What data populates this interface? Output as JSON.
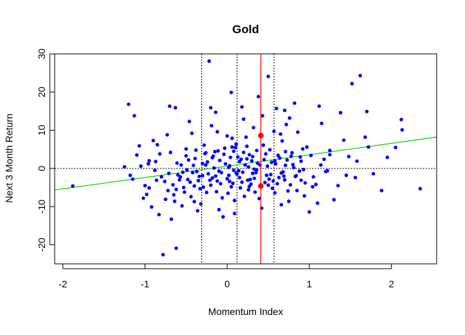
{
  "chart_data": {
    "type": "scatter",
    "title": "Gold",
    "xlabel": "Momentum Index",
    "ylabel": "Next 3 Month Return",
    "xlim": [
      -2.1,
      2.55
    ],
    "ylim": [
      -25,
      30
    ],
    "x_ticks": [
      "-2",
      "-1",
      "0",
      "1",
      "2"
    ],
    "y_ticks": [
      "-20",
      "-10",
      "0",
      "10",
      "20",
      "30"
    ],
    "grid": false,
    "colors": {
      "points": "#0000ff",
      "regression_line": "#00cc00",
      "current_line": "#ff0000",
      "reference_lines": "#000000"
    },
    "regression_line": {
      "intercept": 0.6,
      "slope": 2.98
    },
    "horizontal_reference": 0,
    "vertical_reference_lines": [
      -0.31,
      0.12,
      0.57
    ],
    "current_value_line": 0.41,
    "highlight_points": [
      {
        "x": 0.41,
        "y": 8.6
      },
      {
        "x": 0.41,
        "y": -4.6
      }
    ],
    "points": [
      [
        -1.88,
        -4.6
      ],
      [
        -1.25,
        0.4
      ],
      [
        -1.2,
        16.8
      ],
      [
        -1.13,
        13.8
      ],
      [
        -1.05,
        0.6
      ],
      [
        -1.15,
        -2.8
      ],
      [
        -1.02,
        -7.8
      ],
      [
        -0.95,
        -5.1
      ],
      [
        -0.9,
        7.3
      ],
      [
        -0.85,
        6.2
      ],
      [
        -0.8,
        -2.2
      ],
      [
        -0.78,
        -22.6
      ],
      [
        -0.72,
        -5.8
      ],
      [
        -0.7,
        16.3
      ],
      [
        -0.63,
        15.9
      ],
      [
        -0.62,
        -20.9
      ],
      [
        -0.68,
        -13.3
      ],
      [
        -0.6,
        -1.7
      ],
      [
        -0.56,
        0.9
      ],
      [
        -0.5,
        3.3
      ],
      [
        -0.45,
        -3.6
      ],
      [
        -0.4,
        -8.7
      ],
      [
        -0.35,
        -3.2
      ],
      [
        -0.3,
        1.3
      ],
      [
        -0.25,
        -6.3
      ],
      [
        -0.22,
        28.1
      ],
      [
        -0.2,
        15.9
      ],
      [
        -0.18,
        -2.5
      ],
      [
        -0.15,
        4.4
      ],
      [
        -0.1,
        -10.8
      ],
      [
        -0.05,
        -12.7
      ],
      [
        0.0,
        8.5
      ],
      [
        0.02,
        -1.8
      ],
      [
        0.05,
        19.9
      ],
      [
        0.08,
        -0.5
      ],
      [
        0.1,
        5.5
      ],
      [
        0.15,
        -2.4
      ],
      [
        0.18,
        16.1
      ],
      [
        0.2,
        4.2
      ],
      [
        0.25,
        -3.1
      ],
      [
        0.28,
        -2.9
      ],
      [
        0.32,
        10.7
      ],
      [
        0.35,
        -1.1
      ],
      [
        0.38,
        18.8
      ],
      [
        0.42,
        -10.4
      ],
      [
        0.45,
        2.3
      ],
      [
        0.5,
        24.1
      ],
      [
        0.55,
        -5.2
      ],
      [
        0.6,
        15.7
      ],
      [
        0.65,
        9.0
      ],
      [
        0.7,
        15.2
      ],
      [
        0.75,
        -8.6
      ],
      [
        0.78,
        3.2
      ],
      [
        0.82,
        17.1
      ],
      [
        0.85,
        -5.8
      ],
      [
        0.88,
        -0.7
      ],
      [
        0.92,
        5.1
      ],
      [
        0.95,
        -3.8
      ],
      [
        1.0,
        -11.4
      ],
      [
        1.02,
        3.4
      ],
      [
        1.08,
        -4.2
      ],
      [
        1.1,
        -9.1
      ],
      [
        1.12,
        16.3
      ],
      [
        1.15,
        11.8
      ],
      [
        1.2,
        -0.8
      ],
      [
        1.25,
        3.6
      ],
      [
        1.3,
        -8.2
      ],
      [
        1.38,
        14.6
      ],
      [
        1.45,
        -1.8
      ],
      [
        1.52,
        22.2
      ],
      [
        1.56,
        -2.4
      ],
      [
        1.62,
        24.3
      ],
      [
        1.68,
        8.2
      ],
      [
        1.7,
        14.9
      ],
      [
        1.78,
        -1.4
      ],
      [
        1.88,
        -5.8
      ],
      [
        2.05,
        5.5
      ],
      [
        2.12,
        12.8
      ],
      [
        2.13,
        10.1
      ],
      [
        2.35,
        -5.3
      ],
      [
        -0.98,
        -6.8
      ],
      [
        -0.92,
        -10.1
      ],
      [
        -0.87,
        1.8
      ],
      [
        -0.75,
        -8.1
      ],
      [
        -0.66,
        -4.3
      ],
      [
        -0.58,
        -3.0
      ],
      [
        -0.52,
        -6.2
      ],
      [
        -0.47,
        2.2
      ],
      [
        -0.42,
        -1.1
      ],
      [
        -0.38,
        4.8
      ],
      [
        -0.33,
        -5.3
      ],
      [
        -0.28,
        6.1
      ],
      [
        -0.24,
        1.7
      ],
      [
        -0.2,
        -4.4
      ],
      [
        -0.16,
        0.1
      ],
      [
        -0.12,
        9.6
      ],
      [
        -0.08,
        -4.0
      ],
      [
        -0.04,
        3.7
      ],
      [
        0.01,
        -6.5
      ],
      [
        0.04,
        2.9
      ],
      [
        0.07,
        -3.9
      ],
      [
        0.11,
        6.4
      ],
      [
        0.14,
        -0.6
      ],
      [
        0.17,
        2.4
      ],
      [
        0.21,
        -7.3
      ],
      [
        0.24,
        5.8
      ],
      [
        0.27,
        -4.7
      ],
      [
        0.31,
        3.1
      ],
      [
        0.34,
        -6.2
      ],
      [
        0.37,
        1.4
      ],
      [
        0.44,
        6.1
      ],
      [
        0.48,
        -1.8
      ],
      [
        0.52,
        4.9
      ],
      [
        0.56,
        -3.3
      ],
      [
        0.59,
        1.2
      ],
      [
        0.63,
        -2.4
      ],
      [
        0.67,
        7.2
      ],
      [
        0.71,
        0.8
      ],
      [
        0.74,
        -5.9
      ],
      [
        0.79,
        4.1
      ],
      [
        0.83,
        -2.1
      ],
      [
        0.86,
        9.5
      ],
      [
        0.9,
        1.9
      ],
      [
        0.94,
        -7.2
      ],
      [
        0.97,
        5.6
      ],
      [
        1.04,
        -4.8
      ],
      [
        1.14,
        0.9
      ],
      [
        1.22,
        -0.6
      ],
      [
        -0.55,
        -9.8
      ],
      [
        -0.48,
        -2.9
      ],
      [
        -0.43,
        9.2
      ],
      [
        -0.37,
        -0.8
      ],
      [
        -0.32,
        -9.3
      ],
      [
        -0.27,
        3.9
      ],
      [
        -0.23,
        -1.4
      ],
      [
        -0.19,
        11.2
      ],
      [
        -0.14,
        -2.0
      ],
      [
        -0.11,
        4.6
      ],
      [
        -0.06,
        -7.7
      ],
      [
        -0.02,
        1.2
      ],
      [
        0.03,
        -3.4
      ],
      [
        0.06,
        7.9
      ],
      [
        0.09,
        -8.4
      ],
      [
        0.13,
        3.0
      ],
      [
        0.16,
        -5.1
      ],
      [
        0.19,
        -1.0
      ],
      [
        0.23,
        8.2
      ],
      [
        0.26,
        0.4
      ],
      [
        0.29,
        -4.1
      ],
      [
        0.33,
        -0.2
      ],
      [
        0.36,
        4.7
      ],
      [
        0.39,
        -7.9
      ],
      [
        0.46,
        -3.7
      ],
      [
        0.49,
        0.6
      ],
      [
        0.53,
        -1.6
      ],
      [
        0.57,
        9.7
      ],
      [
        0.61,
        -4.0
      ],
      [
        0.64,
        2.7
      ],
      [
        0.68,
        -0.9
      ],
      [
        0.72,
        11.5
      ],
      [
        -1.1,
        3.5
      ],
      [
        -1.0,
        -4.5
      ],
      [
        -0.96,
        1.2
      ],
      [
        -0.88,
        -0.5
      ],
      [
        -0.82,
        3.8
      ],
      [
        -0.76,
        -3.4
      ],
      [
        -0.71,
        -1.3
      ],
      [
        -0.65,
        -6.9
      ],
      [
        -0.61,
        1.4
      ],
      [
        -0.57,
        -2.2
      ],
      [
        -0.53,
        -5.0
      ],
      [
        -0.49,
        -0.4
      ],
      [
        -0.44,
        -7.4
      ],
      [
        -0.39,
        2.6
      ],
      [
        -0.34,
        -2.1
      ],
      [
        -0.29,
        -4.9
      ],
      [
        -0.26,
        0.9
      ],
      [
        -0.21,
        -3.1
      ],
      [
        -0.17,
        3.2
      ],
      [
        -0.13,
        -6.1
      ],
      [
        -0.09,
        2.1
      ],
      [
        -0.07,
        -1.1
      ],
      [
        -0.03,
        5.3
      ],
      [
        0.0,
        -2.7
      ],
      [
        0.02,
        0.3
      ],
      [
        0.05,
        -4.8
      ],
      [
        0.08,
        4.5
      ],
      [
        0.12,
        -1.5
      ],
      [
        0.15,
        1.8
      ],
      [
        0.18,
        -3.6
      ],
      [
        0.22,
        0.9
      ],
      [
        0.26,
        -5.6
      ],
      [
        0.3,
        2.0
      ],
      [
        0.33,
        -2.6
      ],
      [
        0.36,
        -0.4
      ],
      [
        0.47,
        3.8
      ],
      [
        0.51,
        -2.8
      ],
      [
        0.54,
        1.6
      ],
      [
        0.58,
        -6.4
      ],
      [
        0.62,
        3.4
      ],
      [
        0.66,
        -1.2
      ],
      [
        0.7,
        -3.0
      ],
      [
        0.73,
        2.2
      ],
      [
        0.77,
        -4.3
      ],
      [
        0.81,
        0.2
      ],
      [
        0.84,
        -1.9
      ],
      [
        0.89,
        3.0
      ],
      [
        0.93,
        -0.3
      ],
      [
        1.35,
        -4.5
      ],
      [
        1.42,
        7.4
      ],
      [
        1.48,
        3.1
      ],
      [
        1.58,
        1.9
      ],
      [
        1.72,
        5.6
      ],
      [
        1.95,
        2.9
      ],
      [
        -1.18,
        -1.8
      ],
      [
        -1.07,
        5.9
      ],
      [
        -0.83,
        -12.1
      ],
      [
        -0.73,
        8.8
      ],
      [
        -0.64,
        -8.6
      ],
      [
        -0.46,
        12.3
      ],
      [
        -0.36,
        -11.1
      ],
      [
        -0.14,
        14.7
      ],
      [
        0.09,
        -11.8
      ],
      [
        0.2,
        12.9
      ],
      [
        0.43,
        13.8
      ],
      [
        0.66,
        -9.5
      ],
      [
        0.76,
        13.2
      ],
      [
        -0.54,
        -1.0
      ],
      [
        -0.41,
        0.8
      ],
      [
        -0.3,
        -1.9
      ],
      [
        -0.18,
        2.8
      ],
      [
        -0.1,
        -0.7
      ],
      [
        0.03,
        0.7
      ],
      [
        0.11,
        -1.2
      ],
      [
        0.24,
        2.5
      ],
      [
        0.31,
        -1.3
      ],
      [
        0.4,
        0.9
      ],
      [
        0.58,
        2.0
      ],
      [
        0.69,
        -2.0
      ],
      [
        0.8,
        1.0
      ],
      [
        1.05,
        -2.2
      ],
      [
        1.18,
        2.4
      ],
      [
        -0.62,
        -5.5
      ],
      [
        -0.5,
        5.1
      ],
      [
        -0.4,
        -4.6
      ],
      [
        -0.26,
        4.1
      ],
      [
        -0.12,
        -3.3
      ],
      [
        0.06,
        5.6
      ],
      [
        0.27,
        3.6
      ],
      [
        0.5,
        -4.4
      ],
      [
        0.71,
        4.4
      ],
      [
        0.9,
        -3.1
      ],
      [
        1.25,
        4.7
      ],
      [
        -0.95,
        2.0
      ],
      [
        -0.86,
        -3.1
      ],
      [
        -0.69,
        4.2
      ]
    ]
  }
}
